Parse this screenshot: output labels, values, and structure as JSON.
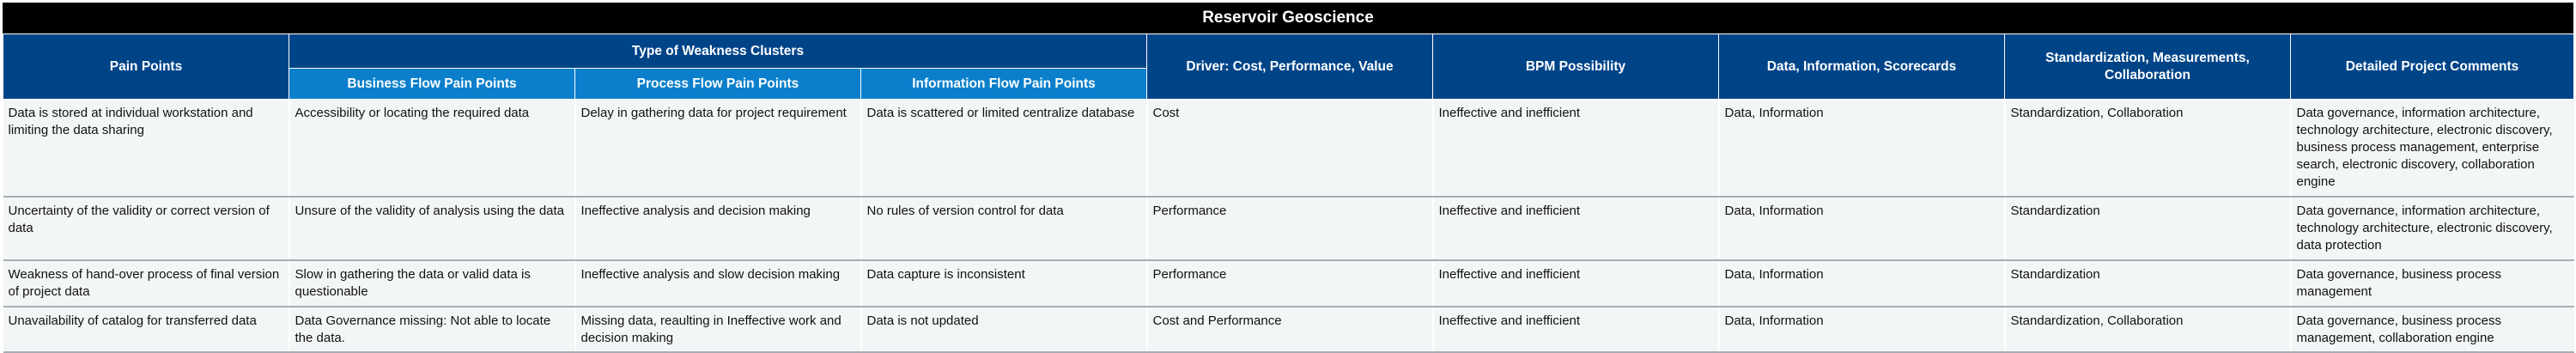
{
  "title": "Reservoir Geoscience",
  "headers": {
    "pain_points": "Pain Points",
    "clusters": "Type of Weakness Clusters",
    "business_flow": "Business Flow Pain Points",
    "process_flow": "Process Flow Pain Points",
    "information_flow": "Information Flow Pain Points",
    "driver": "Driver: Cost, Performance, Value",
    "bpm": "BPM Possibility",
    "data_info": "Data, Information, Scorecards",
    "standardization": "Standardization, Measurements, Collaboration",
    "comments": "Detailed Project Comments"
  },
  "rows": [
    {
      "pain_point": "Data is stored at individual workstation and limiting the data sharing",
      "business_flow": "Accessibility or locating the required data",
      "process_flow": "Delay in gathering data for project requirement",
      "information_flow": "Data is scattered or limited centralize database",
      "driver": "Cost",
      "bpm": "Ineffective and inefficient",
      "data_info": "Data, Information",
      "standardization": "Standardization, Collaboration",
      "comments": "Data governance, information architecture, technology architecture, electronic discovery, business process management, enterprise search, electronic discovery, collaboration engine"
    },
    {
      "pain_point": "Uncertainty of the validity or correct version of data",
      "business_flow": "Unsure of the validity of analysis using the data",
      "process_flow": "Ineffective analysis and decision making",
      "information_flow": "No rules of version control for data",
      "driver": "Performance",
      "bpm": "Ineffective and inefficient",
      "data_info": "Data, Information",
      "standardization": "Standardization",
      "comments": "Data governance, information architecture, technology architecture, electronic discovery, data protection"
    },
    {
      "pain_point": "Weakness of hand-over process of final version of project data",
      "business_flow": "Slow in gathering the data or valid data is questionable",
      "process_flow": "Ineffective analysis and slow decision making",
      "information_flow": "Data capture is inconsistent",
      "driver": "Performance",
      "bpm": "Ineffective and inefficient",
      "data_info": "Data, Information",
      "standardization": "Standardization",
      "comments": "Data governance, business process management"
    },
    {
      "pain_point": "Unavailability of catalog for transferred data",
      "business_flow": "Data Governance missing: Not able to locate the data.",
      "process_flow": "Missing data, reaulting in Ineffective work and decision making",
      "information_flow": "Data is not updated",
      "driver": "Cost and Performance",
      "bpm": "Ineffective and inefficient",
      "data_info": "Data, Information",
      "standardization": "Standardization, Collaboration",
      "comments": "Data governance, business process management, collaboration engine"
    }
  ]
}
